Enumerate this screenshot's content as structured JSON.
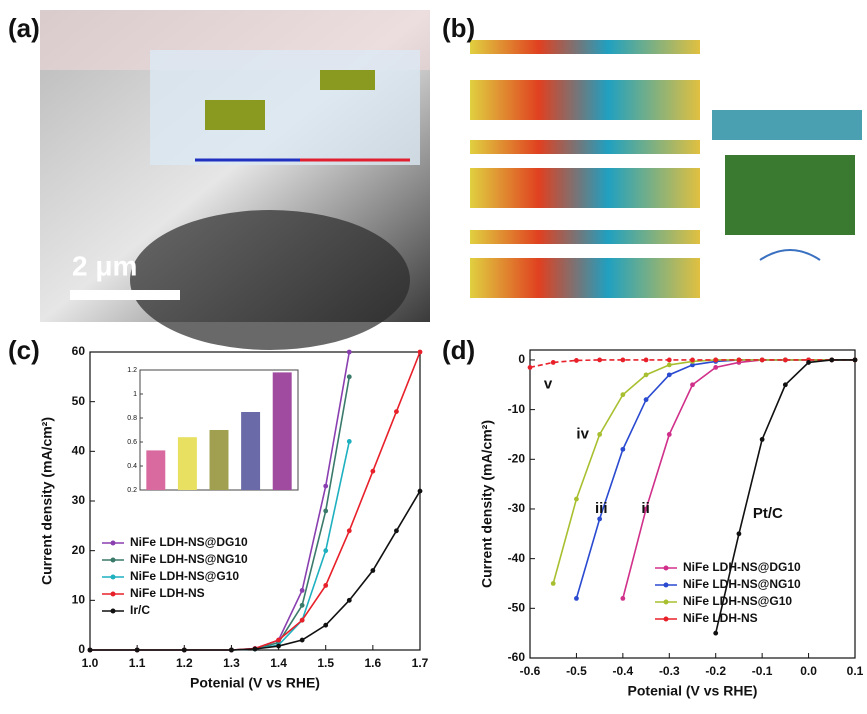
{
  "panel_labels": [
    "(a)",
    "(b)",
    "(c)",
    "(d)"
  ],
  "scale_bar": "2 μm",
  "chart_data": [
    {
      "type": "line",
      "x_label": "Potenial (V vs RHE)",
      "y_label": "Current density (mA/cm²)",
      "x": [
        1.0,
        1.1,
        1.2,
        1.3,
        1.35,
        1.4,
        1.45,
        1.5,
        1.55,
        1.6,
        1.65,
        1.7
      ],
      "series": [
        {
          "name": "NiFe LDH-NS@DG10",
          "color": "#8a3fb0",
          "values": [
            0,
            0,
            0,
            0,
            0.3,
            2,
            12,
            33,
            60,
            null,
            null,
            null
          ]
        },
        {
          "name": "NiFe LDH-NS@NG10",
          "color": "#3a7a6a",
          "values": [
            0,
            0,
            0,
            0,
            0.2,
            1.5,
            9,
            28,
            55,
            null,
            null,
            null
          ]
        },
        {
          "name": "NiFe LDH-NS@G10",
          "color": "#1fb0c0",
          "values": [
            0,
            0,
            0,
            0,
            0.2,
            1,
            6,
            20,
            42,
            null,
            null,
            null
          ]
        },
        {
          "name": "NiFe LDH-NS",
          "color": "#e8202a",
          "values": [
            0,
            0,
            0,
            0,
            0.3,
            2,
            6,
            13,
            24,
            36,
            48,
            60
          ]
        },
        {
          "name": "Ir/C",
          "color": "#111111",
          "values": [
            0,
            0,
            0,
            0,
            0.2,
            0.8,
            2,
            5,
            10,
            16,
            24,
            32
          ]
        }
      ],
      "xlim": [
        1.0,
        1.7
      ],
      "xticks": [
        {
          "value": 1.0,
          "label": "1.0"
        },
        1.1,
        1.2,
        1.3,
        1.4,
        1.5,
        1.6,
        1.7
      ],
      "ylim": [
        0,
        60
      ],
      "yticks": [
        0,
        10,
        20,
        30,
        40,
        50,
        60
      ],
      "legend": "lower left"
    },
    {
      "type": "bar",
      "categories": [
        null,
        null,
        null,
        null,
        null
      ],
      "values": [
        0.53,
        0.64,
        0.7,
        0.85,
        1.18
      ],
      "colors": [
        "#d86aa0",
        "#e8e060",
        "#a0a050",
        "#6a6aa8",
        "#a04aa0"
      ],
      "ylim": [
        0.2,
        1.2
      ],
      "yticks": [
        0.2,
        0.4,
        0.6,
        0.8,
        1,
        1.2
      ]
    },
    {
      "type": "line",
      "x_label": "Potenial (V vs RHE)",
      "y_label": "Current density (mA/cm²)",
      "x": [
        -0.6,
        -0.55,
        -0.5,
        -0.45,
        -0.4,
        -0.35,
        -0.3,
        -0.25,
        -0.2,
        -0.15,
        -0.1,
        -0.05,
        0,
        0.05,
        0.1
      ],
      "series": [
        {
          "name": "NiFe LDH-NS@DG10",
          "color": "#d0308a",
          "values": [
            null,
            null,
            null,
            null,
            -48,
            -30,
            -15,
            -5,
            -1.5,
            -0.5,
            0,
            0,
            0,
            0,
            0
          ]
        },
        {
          "name": "NiFe LDH-NS@NG10",
          "color": "#2a4ad0",
          "values": [
            null,
            null,
            -48,
            -32,
            -18,
            -8,
            -3,
            -1,
            -0.3,
            0,
            0,
            0,
            0,
            0,
            0
          ]
        },
        {
          "name": "NiFe LDH-NS@G10",
          "color": "#a8c030",
          "values": [
            null,
            -45,
            -28,
            -15,
            -7,
            -3,
            -1,
            -0.3,
            0,
            0,
            0,
            0,
            0,
            0,
            0
          ]
        },
        {
          "name": "NiFe LDH-NS",
          "color": "#e8202a",
          "dashed": true,
          "values": [
            -1.5,
            -0.5,
            -0.1,
            0,
            0,
            0,
            0,
            0,
            0,
            0,
            0,
            0,
            0,
            0,
            0
          ]
        },
        {
          "name": "Pt/C",
          "color": "#111111",
          "legend": false,
          "values": [
            null,
            null,
            null,
            null,
            null,
            null,
            null,
            null,
            -55,
            -35,
            -16,
            -5,
            -0.5,
            0,
            0
          ]
        }
      ],
      "annotations": [
        {
          "text": "v",
          "x": -0.57,
          "y": -5
        },
        {
          "text": "iv",
          "x": -0.5,
          "y": -15
        },
        {
          "text": "iii",
          "x": -0.46,
          "y": -30
        },
        {
          "text": "ii",
          "x": -0.36,
          "y": -30
        },
        {
          "text": "Pt/C",
          "x": -0.12,
          "y": -31
        }
      ],
      "xlim": [
        -0.6,
        0.1
      ],
      "xticks": [
        {
          "value": -0.6,
          "label": "-0.6"
        },
        {
          "value": -0.5,
          "label": "-0.5"
        },
        {
          "value": -0.4,
          "label": "-0.4"
        },
        {
          "value": -0.3,
          "label": "-0.3"
        },
        {
          "value": -0.2,
          "label": "-0.2"
        },
        {
          "value": -0.1,
          "label": "-0.1"
        },
        {
          "value": 0,
          "label": "0.0"
        },
        0.1
      ],
      "ylim": [
        -60,
        2
      ],
      "yticks": [
        0,
        -10,
        -20,
        -30,
        -40,
        -50,
        -60
      ],
      "legend": "lower right"
    }
  ]
}
